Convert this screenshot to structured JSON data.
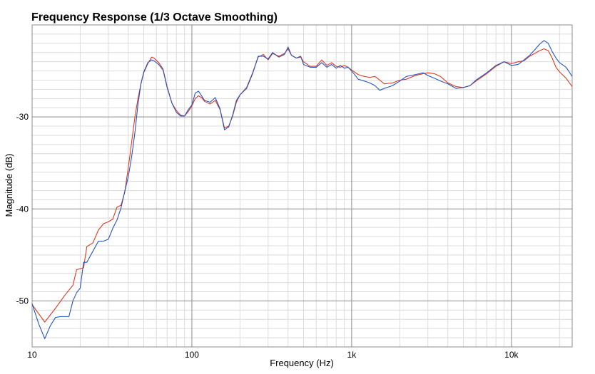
{
  "chart_data": {
    "type": "line",
    "title": "Frequency Response (1/3 Octave Smoothing)",
    "xlabel": "Frequency (Hz)",
    "ylabel": "Magnitude (dB)",
    "xscale": "log",
    "xlim": [
      10,
      24000
    ],
    "ylim": [
      -55,
      -20
    ],
    "grid": true,
    "x_ticks": [
      {
        "value": 10,
        "label": "10"
      },
      {
        "value": 100,
        "label": "100"
      },
      {
        "value": 1000,
        "label": "1k"
      },
      {
        "value": 10000,
        "label": "10k"
      }
    ],
    "y_ticks": [
      {
        "value": -30,
        "label": "-30"
      },
      {
        "value": -40,
        "label": "-40"
      },
      {
        "value": -50,
        "label": "-50"
      }
    ],
    "series": [
      {
        "name": "red",
        "color": "#e03a1e",
        "points": [
          [
            10,
            -50.4
          ],
          [
            12,
            -52.3
          ],
          [
            14,
            -50.8
          ],
          [
            16,
            -49.4
          ],
          [
            18,
            -48.3
          ],
          [
            19,
            -46.6
          ],
          [
            21,
            -46.4
          ],
          [
            22,
            -44.1
          ],
          [
            24,
            -43.7
          ],
          [
            26,
            -42.3
          ],
          [
            28,
            -41.6
          ],
          [
            30,
            -41.4
          ],
          [
            32,
            -41.1
          ],
          [
            34,
            -39.8
          ],
          [
            36,
            -39.6
          ],
          [
            38,
            -38.2
          ],
          [
            40,
            -35.5
          ],
          [
            42,
            -32.7
          ],
          [
            44,
            -30.0
          ],
          [
            46,
            -28.0
          ],
          [
            48,
            -26.4
          ],
          [
            50,
            -25.2
          ],
          [
            53,
            -24.2
          ],
          [
            56,
            -23.5
          ],
          [
            58,
            -23.6
          ],
          [
            62,
            -24.1
          ],
          [
            66,
            -24.8
          ],
          [
            70,
            -26.7
          ],
          [
            75,
            -28.5
          ],
          [
            80,
            -29.3
          ],
          [
            85,
            -29.8
          ],
          [
            90,
            -29.9
          ],
          [
            95,
            -29.4
          ],
          [
            100,
            -28.8
          ],
          [
            105,
            -28.0
          ],
          [
            110,
            -27.7
          ],
          [
            115,
            -27.9
          ],
          [
            120,
            -28.3
          ],
          [
            130,
            -28.6
          ],
          [
            140,
            -28.2
          ],
          [
            150,
            -29.2
          ],
          [
            160,
            -31.2
          ],
          [
            170,
            -31.0
          ],
          [
            180,
            -29.9
          ],
          [
            190,
            -28.4
          ],
          [
            200,
            -27.6
          ],
          [
            220,
            -26.8
          ],
          [
            240,
            -25.2
          ],
          [
            260,
            -23.5
          ],
          [
            280,
            -23.2
          ],
          [
            300,
            -23.8
          ],
          [
            320,
            -23.1
          ],
          [
            350,
            -23.4
          ],
          [
            380,
            -23.1
          ],
          [
            400,
            -22.6
          ],
          [
            420,
            -23.3
          ],
          [
            450,
            -23.6
          ],
          [
            480,
            -23.5
          ],
          [
            500,
            -24.0
          ],
          [
            550,
            -24.5
          ],
          [
            600,
            -24.5
          ],
          [
            650,
            -23.8
          ],
          [
            700,
            -24.4
          ],
          [
            750,
            -24.1
          ],
          [
            800,
            -24.5
          ],
          [
            850,
            -24.6
          ],
          [
            900,
            -24.4
          ],
          [
            950,
            -24.6
          ],
          [
            1000,
            -24.9
          ],
          [
            1100,
            -25.4
          ],
          [
            1200,
            -25.6
          ],
          [
            1300,
            -25.7
          ],
          [
            1400,
            -25.6
          ],
          [
            1500,
            -26.0
          ],
          [
            1600,
            -26.4
          ],
          [
            1800,
            -26.3
          ],
          [
            2000,
            -26.0
          ],
          [
            2200,
            -25.9
          ],
          [
            2500,
            -25.5
          ],
          [
            2800,
            -25.3
          ],
          [
            3000,
            -25.2
          ],
          [
            3300,
            -25.3
          ],
          [
            3600,
            -25.6
          ],
          [
            4000,
            -26.3
          ],
          [
            4500,
            -26.7
          ],
          [
            5000,
            -26.8
          ],
          [
            5500,
            -26.6
          ],
          [
            6000,
            -26.1
          ],
          [
            7000,
            -25.3
          ],
          [
            8000,
            -24.5
          ],
          [
            9000,
            -24.0
          ],
          [
            10000,
            -24.2
          ],
          [
            11000,
            -24.0
          ],
          [
            12000,
            -23.9
          ],
          [
            13000,
            -23.4
          ],
          [
            14000,
            -23.1
          ],
          [
            15000,
            -22.8
          ],
          [
            16000,
            -22.6
          ],
          [
            17000,
            -22.8
          ],
          [
            18000,
            -23.6
          ],
          [
            19000,
            -24.6
          ],
          [
            20000,
            -25.1
          ],
          [
            22000,
            -25.8
          ],
          [
            24000,
            -26.7
          ]
        ]
      },
      {
        "name": "blue",
        "color": "#2453c9",
        "points": [
          [
            10,
            -50.3
          ],
          [
            11,
            -52.5
          ],
          [
            12,
            -54.1
          ],
          [
            13,
            -52.7
          ],
          [
            14,
            -51.8
          ],
          [
            15,
            -51.7
          ],
          [
            17,
            -51.7
          ],
          [
            18,
            -50.0
          ],
          [
            19,
            -49.1
          ],
          [
            20,
            -48.6
          ],
          [
            21,
            -45.8
          ],
          [
            22,
            -45.8
          ],
          [
            24,
            -44.6
          ],
          [
            26,
            -43.5
          ],
          [
            28,
            -43.5
          ],
          [
            30,
            -43.3
          ],
          [
            32,
            -42.1
          ],
          [
            34,
            -41.2
          ],
          [
            36,
            -39.9
          ],
          [
            38,
            -38.1
          ],
          [
            40,
            -36.5
          ],
          [
            42,
            -34.3
          ],
          [
            44,
            -31.7
          ],
          [
            46,
            -28.6
          ],
          [
            48,
            -26.4
          ],
          [
            50,
            -25.1
          ],
          [
            53,
            -24.1
          ],
          [
            56,
            -23.8
          ],
          [
            58,
            -23.9
          ],
          [
            62,
            -24.3
          ],
          [
            66,
            -24.9
          ],
          [
            70,
            -26.8
          ],
          [
            75,
            -28.5
          ],
          [
            80,
            -29.5
          ],
          [
            85,
            -29.9
          ],
          [
            90,
            -29.9
          ],
          [
            95,
            -29.2
          ],
          [
            100,
            -28.7
          ],
          [
            105,
            -27.4
          ],
          [
            110,
            -27.2
          ],
          [
            115,
            -27.7
          ],
          [
            120,
            -28.2
          ],
          [
            130,
            -28.4
          ],
          [
            140,
            -27.9
          ],
          [
            150,
            -29.1
          ],
          [
            160,
            -31.4
          ],
          [
            170,
            -31.1
          ],
          [
            180,
            -29.8
          ],
          [
            190,
            -28.2
          ],
          [
            200,
            -27.6
          ],
          [
            220,
            -26.9
          ],
          [
            240,
            -25.3
          ],
          [
            260,
            -23.4
          ],
          [
            280,
            -23.4
          ],
          [
            300,
            -23.7
          ],
          [
            320,
            -23.0
          ],
          [
            350,
            -23.5
          ],
          [
            380,
            -23.2
          ],
          [
            400,
            -22.4
          ],
          [
            420,
            -23.3
          ],
          [
            450,
            -23.6
          ],
          [
            480,
            -23.4
          ],
          [
            500,
            -24.3
          ],
          [
            550,
            -24.6
          ],
          [
            600,
            -24.6
          ],
          [
            650,
            -24.1
          ],
          [
            700,
            -24.6
          ],
          [
            750,
            -24.3
          ],
          [
            800,
            -24.7
          ],
          [
            850,
            -24.4
          ],
          [
            900,
            -24.7
          ],
          [
            950,
            -24.6
          ],
          [
            1000,
            -25.0
          ],
          [
            1100,
            -25.9
          ],
          [
            1200,
            -26.1
          ],
          [
            1300,
            -26.3
          ],
          [
            1400,
            -26.6
          ],
          [
            1500,
            -27.1
          ],
          [
            1600,
            -26.9
          ],
          [
            1800,
            -26.6
          ],
          [
            2000,
            -26.1
          ],
          [
            2200,
            -25.6
          ],
          [
            2500,
            -25.4
          ],
          [
            2800,
            -25.2
          ],
          [
            3000,
            -25.5
          ],
          [
            3300,
            -25.8
          ],
          [
            3600,
            -26.1
          ],
          [
            4000,
            -26.4
          ],
          [
            4500,
            -26.9
          ],
          [
            5000,
            -26.8
          ],
          [
            5500,
            -26.6
          ],
          [
            6000,
            -26.0
          ],
          [
            7000,
            -25.2
          ],
          [
            8000,
            -24.4
          ],
          [
            9000,
            -24.0
          ],
          [
            10000,
            -24.4
          ],
          [
            11000,
            -24.3
          ],
          [
            12000,
            -23.8
          ],
          [
            13000,
            -23.3
          ],
          [
            14000,
            -22.7
          ],
          [
            15000,
            -22.1
          ],
          [
            16000,
            -21.7
          ],
          [
            17000,
            -22.0
          ],
          [
            18000,
            -22.9
          ],
          [
            19000,
            -23.6
          ],
          [
            20000,
            -24.1
          ],
          [
            22000,
            -24.6
          ],
          [
            24000,
            -25.6
          ]
        ]
      }
    ]
  }
}
